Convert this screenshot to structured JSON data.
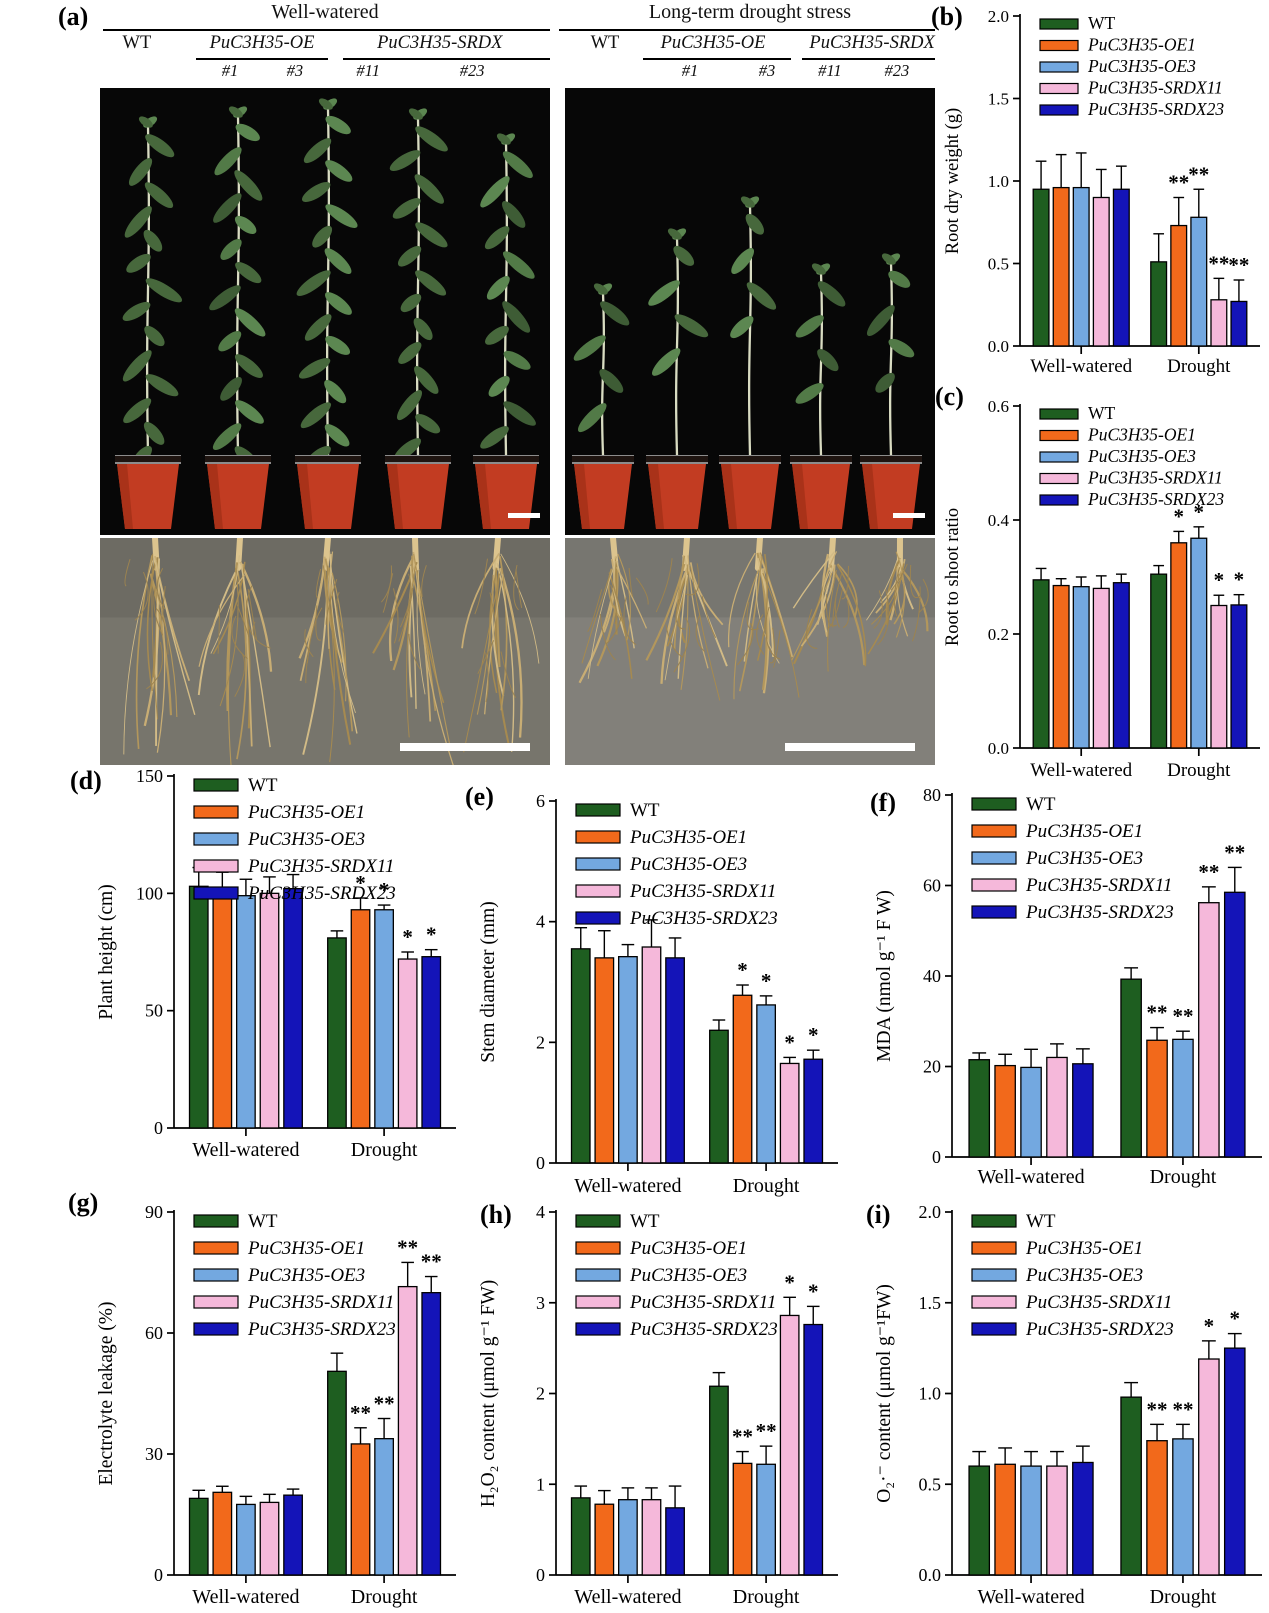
{
  "panel_a": {
    "letter": "(a)",
    "conditions": [
      {
        "title": "Well-watered",
        "genotypes": [
          {
            "label": "WT",
            "italic": false,
            "lines": []
          },
          {
            "label": "PuC3H35-OE",
            "italic": true,
            "lines": [
              "#1",
              "#3"
            ]
          },
          {
            "label": "PuC3H35-SRDX",
            "italic": true,
            "lines": [
              "#11",
              "#23"
            ]
          }
        ]
      },
      {
        "title": "Long-term drought stress",
        "genotypes": [
          {
            "label": "WT",
            "italic": false,
            "lines": []
          },
          {
            "label": "PuC3H35-OE",
            "italic": true,
            "lines": [
              "#1",
              "#3"
            ]
          },
          {
            "label": "PuC3H35-SRDX",
            "italic": true,
            "lines": [
              "#11",
              "#23"
            ]
          }
        ]
      }
    ]
  },
  "palette": {
    "wt_green": "#1E5E20",
    "oe1_orange": "#F2691B",
    "oe3_blue": "#73A8E0",
    "srdx11_pink": "#F5B8DA",
    "srdx23_navy": "#1414B8"
  },
  "chart_data": [
    {
      "panel": "b",
      "letter": "(b)",
      "type": "bar",
      "ylabel": "Root dry weight (g)",
      "ylim": [
        0,
        2
      ],
      "yticks": [
        "0.0",
        "0.5",
        "1.0",
        "1.5",
        "2.0"
      ],
      "categories": [
        "Well-watered",
        "Drought"
      ],
      "grid": false,
      "legend_position": "top-left-inside",
      "series": [
        {
          "name": "WT",
          "italic": false,
          "color": "#1E5E20",
          "values": [
            0.95,
            0.51
          ],
          "errors": [
            0.17,
            0.17
          ],
          "sig": [
            "",
            ""
          ]
        },
        {
          "name": "PuC3H35-OE1",
          "italic": true,
          "color": "#F2691B",
          "values": [
            0.96,
            0.73
          ],
          "errors": [
            0.2,
            0.17
          ],
          "sig": [
            "",
            "**"
          ]
        },
        {
          "name": "PuC3H35-OE3",
          "italic": true,
          "color": "#73A8E0",
          "values": [
            0.96,
            0.78
          ],
          "errors": [
            0.21,
            0.17
          ],
          "sig": [
            "",
            "**"
          ]
        },
        {
          "name": "PuC3H35-SRDX11",
          "italic": true,
          "color": "#F5B8DA",
          "values": [
            0.9,
            0.28
          ],
          "errors": [
            0.17,
            0.13
          ],
          "sig": [
            "",
            "**"
          ]
        },
        {
          "name": "PuC3H35-SRDX23",
          "italic": true,
          "color": "#1414B8",
          "values": [
            0.95,
            0.27
          ],
          "errors": [
            0.14,
            0.13
          ],
          "sig": [
            "",
            "**"
          ]
        }
      ]
    },
    {
      "panel": "c",
      "letter": "(c)",
      "type": "bar",
      "ylabel": "Root to shoot ratio",
      "ylim": [
        0,
        0.6
      ],
      "yticks": [
        "0.0",
        "0.2",
        "0.4",
        "0.6"
      ],
      "categories": [
        "Well-watered",
        "Drought"
      ],
      "grid": false,
      "legend_position": "top-left-inside",
      "series": [
        {
          "name": "WT",
          "italic": false,
          "color": "#1E5E20",
          "values": [
            0.295,
            0.305
          ],
          "errors": [
            0.02,
            0.015
          ],
          "sig": [
            "",
            ""
          ]
        },
        {
          "name": "PuC3H35-OE1",
          "italic": true,
          "color": "#F2691B",
          "values": [
            0.285,
            0.36
          ],
          "errors": [
            0.012,
            0.02
          ],
          "sig": [
            "",
            "*"
          ]
        },
        {
          "name": "PuC3H35-OE3",
          "italic": true,
          "color": "#73A8E0",
          "values": [
            0.283,
            0.368
          ],
          "errors": [
            0.017,
            0.02
          ],
          "sig": [
            "",
            "*"
          ]
        },
        {
          "name": "PuC3H35-SRDX11",
          "italic": true,
          "color": "#F5B8DA",
          "values": [
            0.28,
            0.25
          ],
          "errors": [
            0.022,
            0.018
          ],
          "sig": [
            "",
            "*"
          ]
        },
        {
          "name": "PuC3H35-SRDX23",
          "italic": true,
          "color": "#1414B8",
          "values": [
            0.29,
            0.251
          ],
          "errors": [
            0.015,
            0.018
          ],
          "sig": [
            "",
            "*"
          ]
        }
      ]
    },
    {
      "panel": "d",
      "letter": "(d)",
      "type": "bar",
      "ylabel": "Plant height (cm)",
      "ylim": [
        0,
        150
      ],
      "yticks": [
        "0",
        "50",
        "100",
        "150"
      ],
      "categories": [
        "Well-watered",
        "Drought"
      ],
      "grid": false,
      "legend_position": "top-left-inside",
      "series": [
        {
          "name": "WT",
          "italic": false,
          "color": "#1E5E20",
          "values": [
            103,
            81
          ],
          "errors": [
            8,
            3
          ],
          "sig": [
            "",
            ""
          ]
        },
        {
          "name": "PuC3H35-OE1",
          "italic": true,
          "color": "#F2691B",
          "values": [
            101,
            93
          ],
          "errors": [
            8,
            5
          ],
          "sig": [
            "",
            "*"
          ]
        },
        {
          "name": "PuC3H35-OE3",
          "italic": true,
          "color": "#73A8E0",
          "values": [
            99,
            93
          ],
          "errors": [
            7,
            2
          ],
          "sig": [
            "",
            "*"
          ]
        },
        {
          "name": "PuC3H35-SRDX11",
          "italic": true,
          "color": "#F5B8DA",
          "values": [
            100,
            72
          ],
          "errors": [
            7,
            3
          ],
          "sig": [
            "",
            "*"
          ]
        },
        {
          "name": "PuC3H35-SRDX23",
          "italic": true,
          "color": "#1414B8",
          "values": [
            102,
            73
          ],
          "errors": [
            6,
            3
          ],
          "sig": [
            "",
            "*"
          ]
        }
      ]
    },
    {
      "panel": "e",
      "letter": "(e)",
      "type": "bar",
      "ylabel": "Stem diameter (mm)",
      "ylim": [
        0,
        6
      ],
      "yticks": [
        "0",
        "2",
        "4",
        "6"
      ],
      "categories": [
        "Well-watered",
        "Drought"
      ],
      "grid": false,
      "legend_position": "top-left-inside",
      "series": [
        {
          "name": "WT",
          "italic": false,
          "color": "#1E5E20",
          "values": [
            3.55,
            2.2
          ],
          "errors": [
            0.35,
            0.17
          ],
          "sig": [
            "",
            ""
          ]
        },
        {
          "name": "PuC3H35-OE1",
          "italic": true,
          "color": "#F2691B",
          "values": [
            3.4,
            2.78
          ],
          "errors": [
            0.45,
            0.17
          ],
          "sig": [
            "",
            "*"
          ]
        },
        {
          "name": "PuC3H35-OE3",
          "italic": true,
          "color": "#73A8E0",
          "values": [
            3.42,
            2.62
          ],
          "errors": [
            0.2,
            0.15
          ],
          "sig": [
            "",
            "*"
          ]
        },
        {
          "name": "PuC3H35-SRDX11",
          "italic": true,
          "color": "#F5B8DA",
          "values": [
            3.58,
            1.65
          ],
          "errors": [
            0.45,
            0.1
          ],
          "sig": [
            "",
            "*"
          ]
        },
        {
          "name": "PuC3H35-SRDX23",
          "italic": true,
          "color": "#1414B8",
          "values": [
            3.4,
            1.72
          ],
          "errors": [
            0.33,
            0.15
          ],
          "sig": [
            "",
            "*"
          ]
        }
      ]
    },
    {
      "panel": "f",
      "letter": "(f)",
      "type": "bar",
      "ylabel": "MDA (nmol g⁻¹ F W)",
      "ylim": [
        0,
        80
      ],
      "yticks": [
        "0",
        "20",
        "40",
        "60",
        "80"
      ],
      "categories": [
        "Well-watered",
        "Drought"
      ],
      "grid": false,
      "legend_position": "top-left-inside",
      "series": [
        {
          "name": "WT",
          "italic": false,
          "color": "#1E5E20",
          "values": [
            21.5,
            39.3
          ],
          "errors": [
            1.5,
            2.5
          ],
          "sig": [
            "",
            ""
          ]
        },
        {
          "name": "PuC3H35-OE1",
          "italic": true,
          "color": "#F2691B",
          "values": [
            20.2,
            25.8
          ],
          "errors": [
            2.5,
            2.8
          ],
          "sig": [
            "",
            "**"
          ]
        },
        {
          "name": "PuC3H35-OE3",
          "italic": true,
          "color": "#73A8E0",
          "values": [
            19.8,
            26.0
          ],
          "errors": [
            4.0,
            1.8
          ],
          "sig": [
            "",
            "**"
          ]
        },
        {
          "name": "PuC3H35-SRDX11",
          "italic": true,
          "color": "#F5B8DA",
          "values": [
            22.0,
            56.2
          ],
          "errors": [
            3.0,
            3.5
          ],
          "sig": [
            "",
            "**"
          ]
        },
        {
          "name": "PuC3H35-SRDX23",
          "italic": true,
          "color": "#1414B8",
          "values": [
            20.6,
            58.5
          ],
          "errors": [
            3.3,
            5.5
          ],
          "sig": [
            "",
            "**"
          ]
        }
      ]
    },
    {
      "panel": "g",
      "letter": "(g)",
      "type": "bar",
      "ylabel": "Electrolyte  leakage  (%)",
      "ylim": [
        0,
        90
      ],
      "yticks": [
        "0",
        "30",
        "60",
        "90"
      ],
      "categories": [
        "Well-watered",
        "Drought"
      ],
      "grid": false,
      "legend_position": "top-left-inside",
      "series": [
        {
          "name": "WT",
          "italic": false,
          "color": "#1E5E20",
          "values": [
            19.0,
            50.5
          ],
          "errors": [
            2.0,
            4.5
          ],
          "sig": [
            "",
            ""
          ]
        },
        {
          "name": "PuC3H35-OE1",
          "italic": true,
          "color": "#F2691B",
          "values": [
            20.5,
            32.5
          ],
          "errors": [
            1.5,
            4.0
          ],
          "sig": [
            "",
            "**"
          ]
        },
        {
          "name": "PuC3H35-OE3",
          "italic": true,
          "color": "#73A8E0",
          "values": [
            17.5,
            33.8
          ],
          "errors": [
            2.0,
            5.0
          ],
          "sig": [
            "",
            "**"
          ]
        },
        {
          "name": "PuC3H35-SRDX11",
          "italic": true,
          "color": "#F5B8DA",
          "values": [
            18.0,
            71.5
          ],
          "errors": [
            2.0,
            6.0
          ],
          "sig": [
            "",
            "**"
          ]
        },
        {
          "name": "PuC3H35-SRDX23",
          "italic": true,
          "color": "#1414B8",
          "values": [
            19.8,
            70.0
          ],
          "errors": [
            1.5,
            4.0
          ],
          "sig": [
            "",
            "**"
          ]
        }
      ]
    },
    {
      "panel": "h",
      "letter": "(h)",
      "type": "bar",
      "ylabel": "H₂O₂ content  (μmol g⁻¹ FW)",
      "ylim": [
        0,
        4
      ],
      "yticks": [
        "0",
        "1",
        "2",
        "3",
        "4"
      ],
      "categories": [
        "Well-watered",
        "Drought"
      ],
      "grid": false,
      "legend_position": "top-left-inside",
      "series": [
        {
          "name": "WT",
          "italic": false,
          "color": "#1E5E20",
          "values": [
            0.85,
            2.08
          ],
          "errors": [
            0.13,
            0.15
          ],
          "sig": [
            "",
            ""
          ]
        },
        {
          "name": "PuC3H35-OE1",
          "italic": true,
          "color": "#F2691B",
          "values": [
            0.78,
            1.23
          ],
          "errors": [
            0.15,
            0.13
          ],
          "sig": [
            "",
            "**"
          ]
        },
        {
          "name": "PuC3H35-OE3",
          "italic": true,
          "color": "#73A8E0",
          "values": [
            0.83,
            1.22
          ],
          "errors": [
            0.13,
            0.2
          ],
          "sig": [
            "",
            "**"
          ]
        },
        {
          "name": "PuC3H35-SRDX11",
          "italic": true,
          "color": "#F5B8DA",
          "values": [
            0.83,
            2.86
          ],
          "errors": [
            0.13,
            0.2
          ],
          "sig": [
            "",
            "*"
          ]
        },
        {
          "name": "PuC3H35-SRDX23",
          "italic": true,
          "color": "#1414B8",
          "values": [
            0.74,
            2.76
          ],
          "errors": [
            0.24,
            0.2
          ],
          "sig": [
            "",
            "*"
          ]
        }
      ]
    },
    {
      "panel": "i",
      "letter": "(i)",
      "type": "bar",
      "ylabel": "O₂·⁻ content  (μmol g⁻¹FW)",
      "ylim": [
        0,
        2
      ],
      "yticks": [
        "0.0",
        "0.5",
        "1.0",
        "1.5",
        "2.0"
      ],
      "categories": [
        "Well-watered",
        "Drought"
      ],
      "grid": false,
      "legend_position": "top-left-inside",
      "series": [
        {
          "name": "WT",
          "italic": false,
          "color": "#1E5E20",
          "values": [
            0.6,
            0.98
          ],
          "errors": [
            0.08,
            0.08
          ],
          "sig": [
            "",
            ""
          ]
        },
        {
          "name": "PuC3H35-OE1",
          "italic": true,
          "color": "#F2691B",
          "values": [
            0.61,
            0.74
          ],
          "errors": [
            0.09,
            0.09
          ],
          "sig": [
            "",
            "**"
          ]
        },
        {
          "name": "PuC3H35-OE3",
          "italic": true,
          "color": "#73A8E0",
          "values": [
            0.6,
            0.75
          ],
          "errors": [
            0.08,
            0.08
          ],
          "sig": [
            "",
            "**"
          ]
        },
        {
          "name": "PuC3H35-SRDX11",
          "italic": true,
          "color": "#F5B8DA",
          "values": [
            0.6,
            1.19
          ],
          "errors": [
            0.08,
            0.1
          ],
          "sig": [
            "",
            "*"
          ]
        },
        {
          "name": "PuC3H35-SRDX23",
          "italic": true,
          "color": "#1414B8",
          "values": [
            0.62,
            1.25
          ],
          "errors": [
            0.09,
            0.08
          ],
          "sig": [
            "",
            "*"
          ]
        }
      ]
    }
  ]
}
